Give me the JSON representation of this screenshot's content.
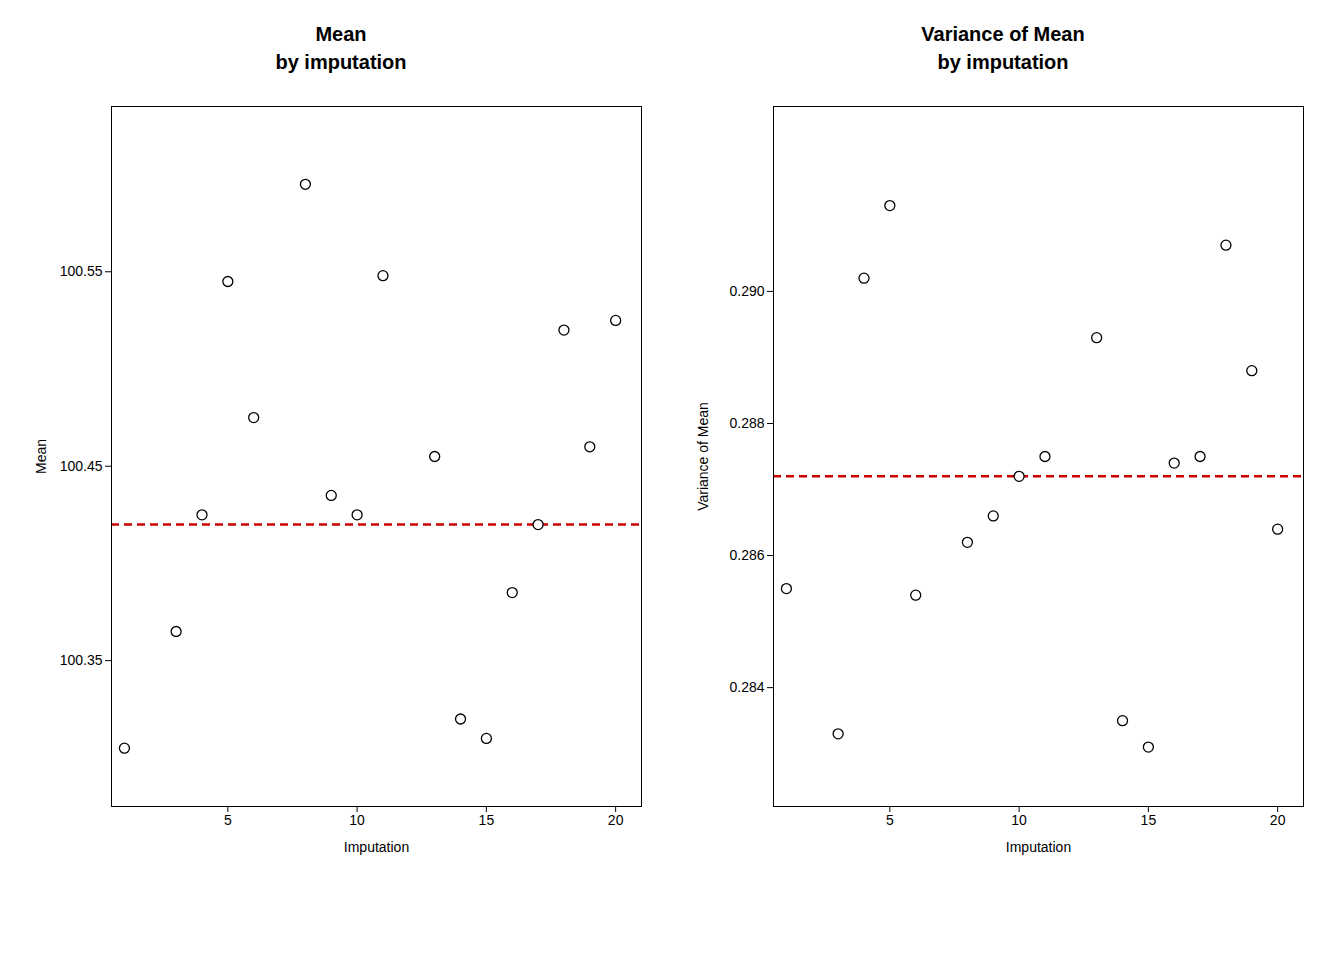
{
  "chart_data": [
    {
      "type": "scatter",
      "title": "Mean\nby imputation",
      "x_label": "Imputation",
      "y_label": "Mean",
      "x": [
        1,
        3,
        4,
        5,
        6,
        8,
        9,
        10,
        11,
        13,
        14,
        15,
        16,
        17,
        18,
        19,
        20
      ],
      "values": [
        100.305,
        100.365,
        100.425,
        100.545,
        100.475,
        100.595,
        100.435,
        100.425,
        100.548,
        100.455,
        100.32,
        100.31,
        100.385,
        100.42,
        100.52,
        100.46,
        100.525
      ],
      "color": "black",
      "marker": "circle",
      "reference_line": {
        "value": 100.42,
        "color": "#cc0000",
        "line_style": "dashed"
      },
      "xlim": [
        0.5,
        21
      ],
      "xticks": [
        5,
        10,
        15,
        20
      ],
      "ylim": [
        100.275,
        100.635
      ],
      "yticks": [
        100.35,
        100.45,
        100.55
      ],
      "grid": false
    },
    {
      "type": "scatter",
      "title": "Variance of Mean\nby imputation",
      "x_label": "Imputation",
      "y_label": "Variance of Mean",
      "x": [
        1,
        3,
        4,
        5,
        6,
        8,
        9,
        10,
        11,
        13,
        14,
        15,
        16,
        17,
        18,
        19,
        20
      ],
      "values": [
        0.2855,
        0.2833,
        0.2902,
        0.2913,
        0.2854,
        0.2862,
        0.2866,
        0.2872,
        0.2875,
        0.2893,
        0.2835,
        0.2831,
        0.2874,
        0.2875,
        0.2907,
        0.2888,
        0.2864
      ],
      "color": "black",
      "marker": "circle",
      "reference_line": {
        "value": 0.2872,
        "color": "#cc0000",
        "line_style": "dashed"
      },
      "xlim": [
        0.5,
        21
      ],
      "xticks": [
        5,
        10,
        15,
        20
      ],
      "ylim": [
        0.2822,
        0.2928
      ],
      "yticks": [
        0.284,
        0.286,
        0.288,
        {
          "value": 0.29,
          "label": "0.290"
        }
      ],
      "grid": false
    }
  ]
}
